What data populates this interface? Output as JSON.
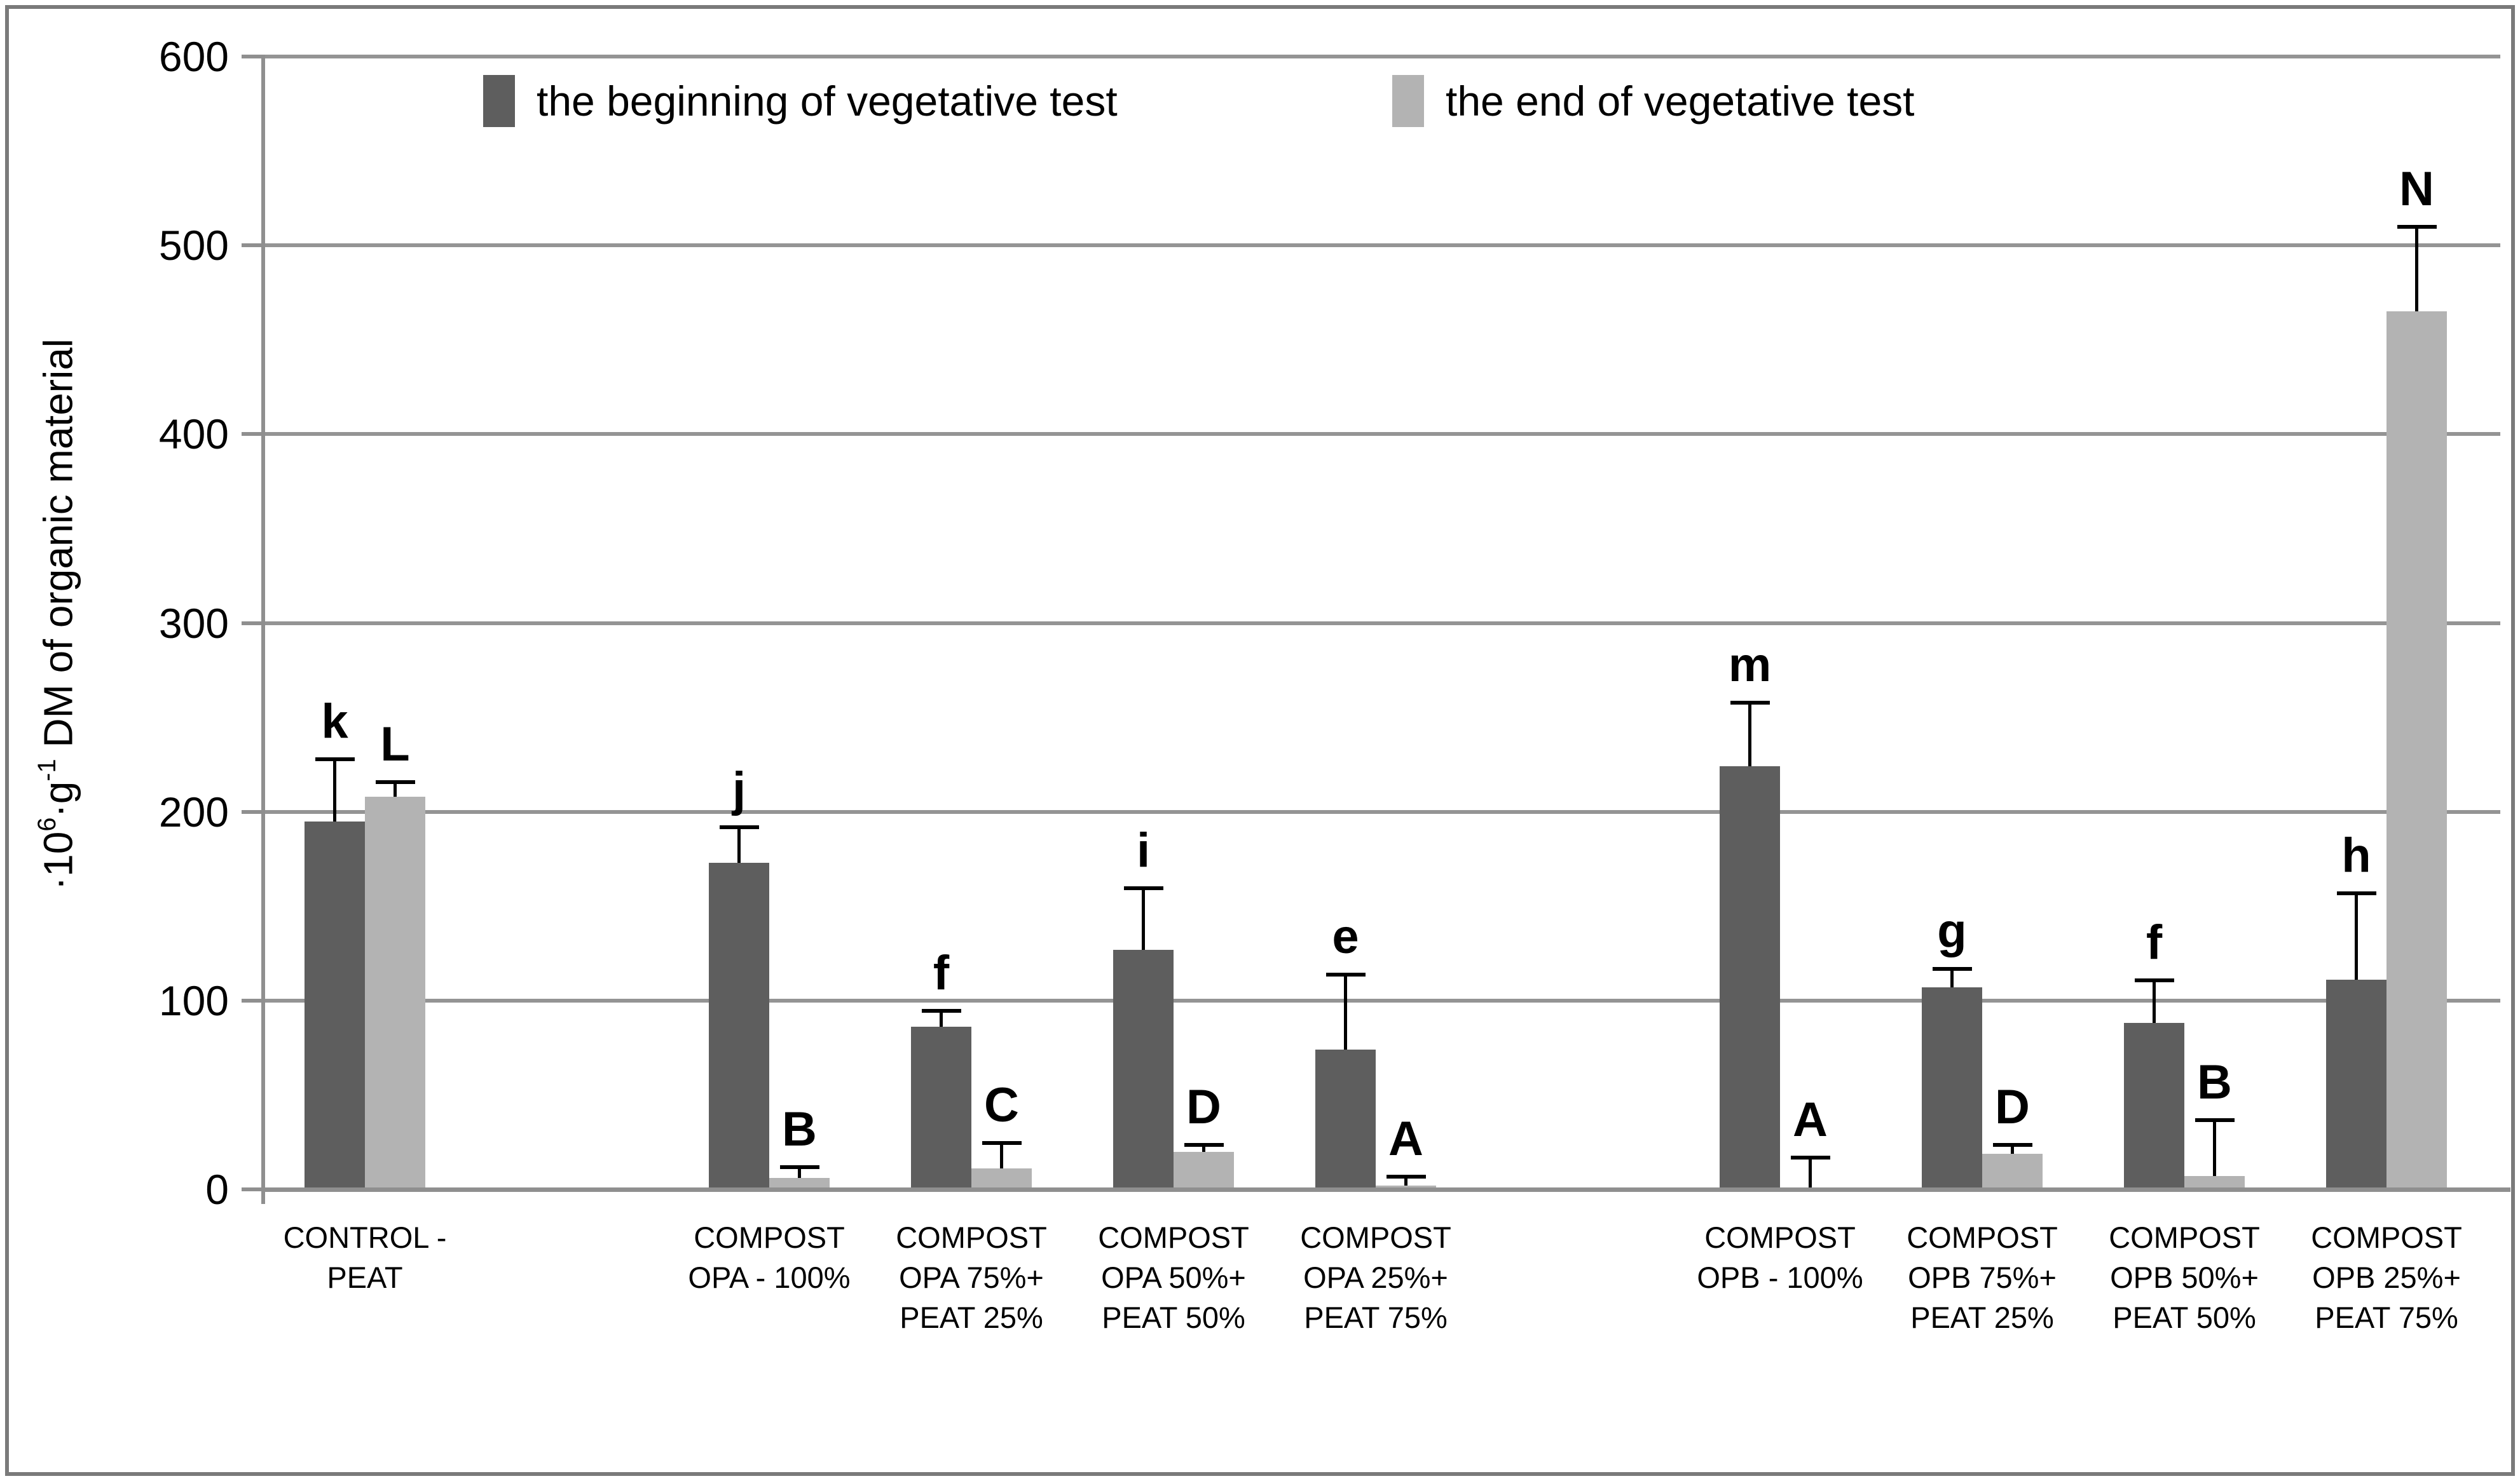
{
  "colors": {
    "background": "#ffffff",
    "frame_border": "#7a7a7a",
    "gridline": "#949494",
    "axis": "#8f8f8f",
    "error_bar": "#000000",
    "text": "#000000"
  },
  "chart_data": {
    "type": "bar",
    "title": "",
    "xlabel": "",
    "ylabel_plain": "·10⁶·g⁻¹ DM of organic material",
    "ylabel_segments": [
      {
        "text": "·10"
      },
      {
        "text": "6",
        "sup": true
      },
      {
        "text": "·g"
      },
      {
        "text": "-1",
        "sup": true
      },
      {
        "text": " DM of organic material"
      }
    ],
    "ylim": [
      0,
      600
    ],
    "yticks": [
      0,
      100,
      200,
      300,
      400,
      500,
      600
    ],
    "grid": true,
    "legend_position": "top-inside",
    "series_meta": [
      {
        "name": "the beginning of vegetative test",
        "color": "#5E5E5E"
      },
      {
        "name": "the end of vegetative test",
        "color": "#B3B3B3"
      }
    ],
    "total_slots": 11,
    "categories": [
      "CONTROL - PEAT",
      "COMPOST OPA - 100%",
      "COMPOST OPA 75%+ PEAT 25%",
      "COMPOST OPA 50%+ PEAT 50%",
      "COMPOST OPA 25%+ PEAT 75%",
      "COMPOST OPB - 100%",
      "COMPOST OPB 75%+ PEAT 25%",
      "COMPOST OPB 50%+ PEAT 50%",
      "COMPOST OPB 25%+ PEAT 75%"
    ],
    "groups": [
      {
        "slot": 0,
        "label_lines": [
          "CONTROL -",
          "PEAT"
        ],
        "begin": {
          "value": 195,
          "error": 33,
          "letter": "k"
        },
        "end": {
          "value": 208,
          "error": 8,
          "letter": "L"
        }
      },
      {
        "slot": 2,
        "label_lines": [
          "COMPOST",
          "OPA - 100%"
        ],
        "begin": {
          "value": 173,
          "error": 19,
          "letter": "j"
        },
        "end": {
          "value": 6,
          "error": 6,
          "letter": "B"
        }
      },
      {
        "slot": 3,
        "label_lines": [
          "COMPOST",
          "OPA 75%+",
          "PEAT 25%"
        ],
        "begin": {
          "value": 86,
          "error": 9,
          "letter": "f"
        },
        "end": {
          "value": 11,
          "error": 14,
          "letter": "C"
        }
      },
      {
        "slot": 4,
        "label_lines": [
          "COMPOST",
          "OPA 50%+",
          "PEAT 50%"
        ],
        "begin": {
          "value": 127,
          "error": 33,
          "letter": "i"
        },
        "end": {
          "value": 20,
          "error": 4,
          "letter": "D"
        }
      },
      {
        "slot": 5,
        "label_lines": [
          "COMPOST",
          "OPA 25%+",
          "PEAT 75%"
        ],
        "begin": {
          "value": 74,
          "error": 40,
          "letter": "e"
        },
        "end": {
          "value": 2,
          "error": 5,
          "letter": "A"
        }
      },
      {
        "slot": 7,
        "label_lines": [
          "COMPOST",
          "OPB - 100%"
        ],
        "begin": {
          "value": 224,
          "error": 34,
          "letter": "m"
        },
        "end": {
          "value": 1,
          "error": 16,
          "letter": "A"
        }
      },
      {
        "slot": 8,
        "label_lines": [
          "COMPOST",
          "OPB 75%+",
          "PEAT 25%"
        ],
        "begin": {
          "value": 107,
          "error": 10,
          "letter": "g"
        },
        "end": {
          "value": 19,
          "error": 5,
          "letter": "D"
        }
      },
      {
        "slot": 9,
        "label_lines": [
          "COMPOST",
          "OPB 50%+",
          "PEAT 50%"
        ],
        "begin": {
          "value": 88,
          "error": 23,
          "letter": "f"
        },
        "end": {
          "value": 7,
          "error": 30,
          "letter": "B"
        }
      },
      {
        "slot": 10,
        "label_lines": [
          "COMPOST",
          "OPB 25%+",
          "PEAT 75%"
        ],
        "begin": {
          "value": 111,
          "error": 46,
          "letter": "h"
        },
        "end": {
          "value": 465,
          "error": 45,
          "letter": "N"
        }
      }
    ]
  }
}
